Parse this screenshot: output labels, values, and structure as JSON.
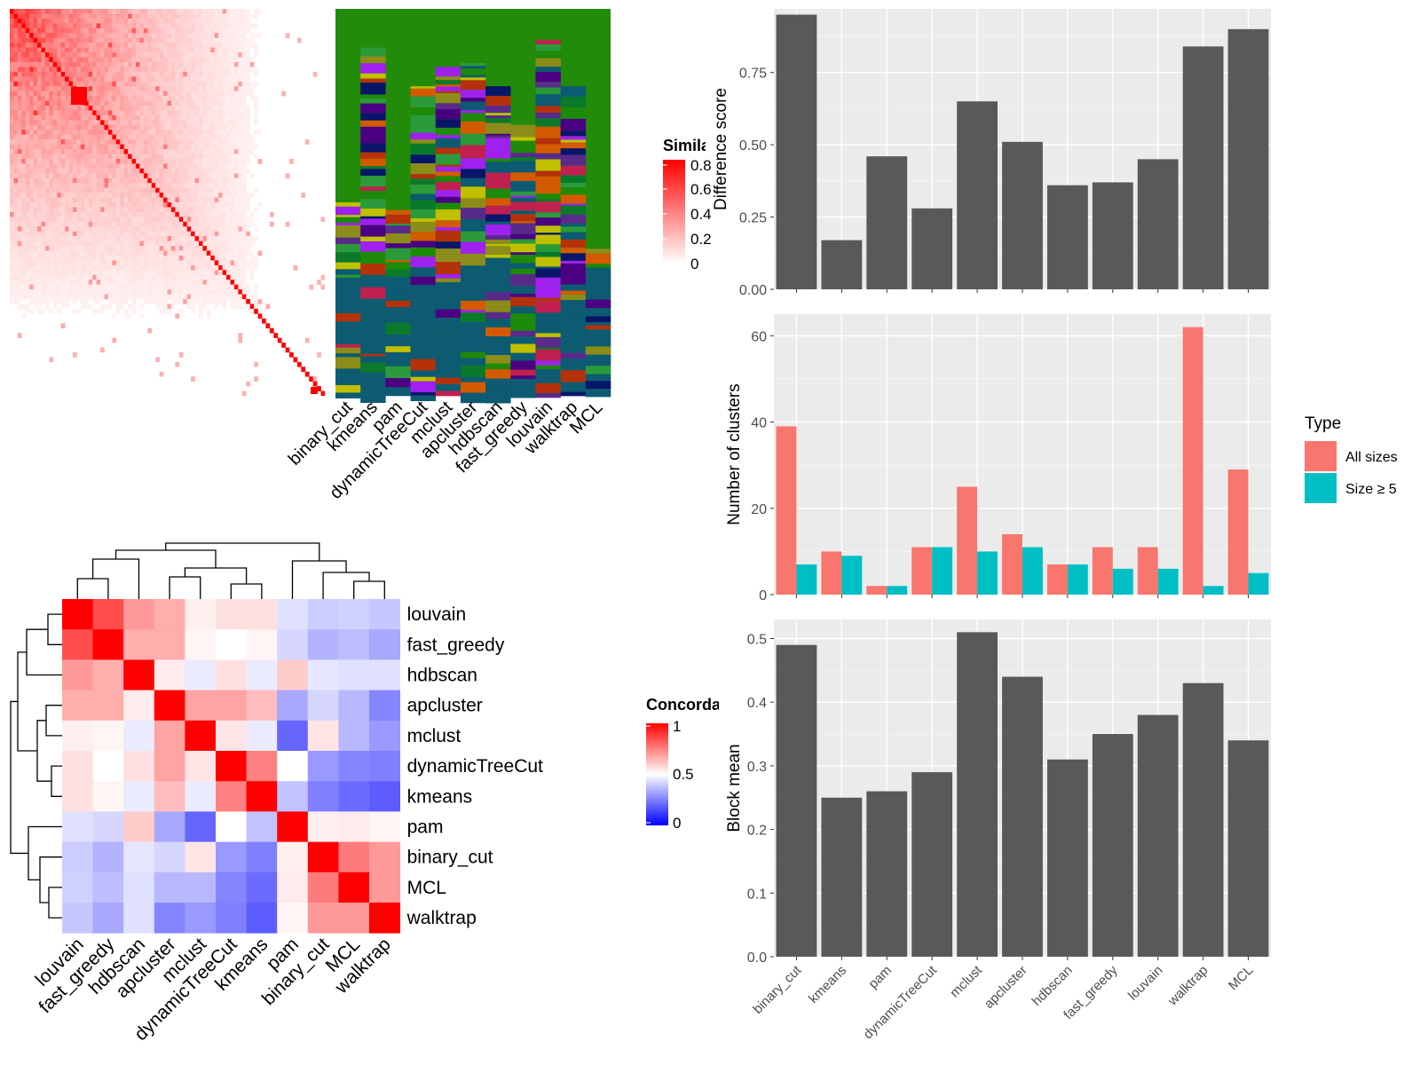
{
  "methods_sim": [
    "binary_cut",
    "kmeans",
    "pam",
    "dynamicTreeCut",
    "mclust",
    "apcluster",
    "hdbscan",
    "fast_greedy",
    "louvain",
    "walktrap",
    "MCL"
  ],
  "sim_legend": {
    "title": "Similarity",
    "ticks": [
      "0.8",
      "0.6",
      "0.4",
      "0.2",
      "0"
    ],
    "colors": [
      "#ffffff",
      "#ff0000"
    ]
  },
  "concord_legend": {
    "title": "Concordance",
    "ticks": [
      "1",
      "0.5",
      "0"
    ],
    "colors": [
      "#0000ff",
      "#ffffff",
      "#ff0000"
    ]
  },
  "concordance": {
    "order": [
      "louvain",
      "fast_greedy",
      "hdbscan",
      "apcluster",
      "mclust",
      "dynamicTreeCut",
      "kmeans",
      "pam",
      "binary_cut",
      "MCL",
      "walktrap"
    ],
    "matrix": [
      [
        1.0,
        0.85,
        0.7,
        0.66,
        0.53,
        0.56,
        0.56,
        0.44,
        0.4,
        0.41,
        0.39
      ],
      [
        0.85,
        1.0,
        0.66,
        0.66,
        0.52,
        0.5,
        0.52,
        0.42,
        0.35,
        0.37,
        0.33
      ],
      [
        0.7,
        0.66,
        1.0,
        0.54,
        0.46,
        0.56,
        0.46,
        0.6,
        0.45,
        0.44,
        0.44
      ],
      [
        0.66,
        0.66,
        0.54,
        1.0,
        0.68,
        0.68,
        0.63,
        0.33,
        0.42,
        0.36,
        0.26
      ],
      [
        0.53,
        0.52,
        0.46,
        0.68,
        1.0,
        0.55,
        0.46,
        0.2,
        0.55,
        0.36,
        0.3
      ],
      [
        0.56,
        0.5,
        0.56,
        0.68,
        0.55,
        1.0,
        0.75,
        0.5,
        0.3,
        0.26,
        0.25
      ],
      [
        0.56,
        0.52,
        0.46,
        0.63,
        0.46,
        0.75,
        1.0,
        0.38,
        0.25,
        0.21,
        0.18
      ],
      [
        0.44,
        0.42,
        0.6,
        0.33,
        0.2,
        0.5,
        0.38,
        1.0,
        0.53,
        0.54,
        0.52
      ],
      [
        0.4,
        0.35,
        0.45,
        0.42,
        0.55,
        0.3,
        0.25,
        0.53,
        1.0,
        0.76,
        0.7
      ],
      [
        0.41,
        0.37,
        0.44,
        0.36,
        0.36,
        0.26,
        0.21,
        0.54,
        0.76,
        1.0,
        0.7
      ],
      [
        0.39,
        0.33,
        0.44,
        0.26,
        0.3,
        0.25,
        0.18,
        0.52,
        0.7,
        0.7,
        1.0
      ]
    ]
  },
  "bar_methods": [
    "binary_cut",
    "kmeans",
    "pam",
    "dynamicTreeCut",
    "mclust",
    "apcluster",
    "hdbscan",
    "fast_greedy",
    "louvain",
    "walktrap",
    "MCL"
  ],
  "bar_color": "#595959",
  "difference": {
    "ylabel": "Difference score",
    "ticks": [
      "0.00",
      "0.25",
      "0.50",
      "0.75"
    ],
    "ylim": [
      0,
      0.97
    ],
    "values": [
      0.95,
      0.17,
      0.46,
      0.28,
      0.65,
      0.51,
      0.36,
      0.37,
      0.45,
      0.84,
      0.9
    ]
  },
  "nclusters": {
    "ylabel": "Number of clusters",
    "ticks": [
      "0",
      "20",
      "40",
      "60"
    ],
    "ylim": [
      0,
      65
    ],
    "all": [
      39,
      10,
      2,
      11,
      25,
      14,
      7,
      11,
      11,
      62,
      29
    ],
    "size5": [
      7,
      9,
      2,
      11,
      10,
      11,
      7,
      6,
      6,
      2,
      5
    ]
  },
  "blockmean": {
    "ylabel": "Block mean",
    "ticks": [
      "0.0",
      "0.1",
      "0.2",
      "0.3",
      "0.4",
      "0.5"
    ],
    "ylim": [
      0,
      0.53
    ],
    "values": [
      0.49,
      0.25,
      0.26,
      0.29,
      0.51,
      0.44,
      0.31,
      0.35,
      0.38,
      0.43,
      0.34
    ]
  },
  "type_legend": {
    "title": "Type",
    "items": [
      {
        "label": "All sizes",
        "color": "#F8766D"
      },
      {
        "label": "Size ≥ 5",
        "color": "#00BFC4"
      }
    ]
  },
  "chart_data": [
    {
      "type": "bar",
      "title": "",
      "ylabel": "Difference score",
      "categories": [
        "binary_cut",
        "kmeans",
        "pam",
        "dynamicTreeCut",
        "mclust",
        "apcluster",
        "hdbscan",
        "fast_greedy",
        "louvain",
        "walktrap",
        "MCL"
      ],
      "values": [
        0.95,
        0.17,
        0.46,
        0.28,
        0.65,
        0.51,
        0.36,
        0.37,
        0.45,
        0.84,
        0.9
      ],
      "ylim": [
        0,
        0.97
      ]
    },
    {
      "type": "bar",
      "title": "",
      "ylabel": "Number of clusters",
      "categories": [
        "binary_cut",
        "kmeans",
        "pam",
        "dynamicTreeCut",
        "mclust",
        "apcluster",
        "hdbscan",
        "fast_greedy",
        "louvain",
        "walktrap",
        "MCL"
      ],
      "series": [
        {
          "name": "All sizes",
          "values": [
            39,
            10,
            2,
            11,
            25,
            14,
            7,
            11,
            11,
            62,
            29
          ]
        },
        {
          "name": "Size ≥ 5",
          "values": [
            7,
            9,
            2,
            11,
            10,
            11,
            7,
            6,
            6,
            2,
            5
          ]
        }
      ],
      "ylim": [
        0,
        65
      ]
    },
    {
      "type": "bar",
      "title": "",
      "ylabel": "Block mean",
      "categories": [
        "binary_cut",
        "kmeans",
        "pam",
        "dynamicTreeCut",
        "mclust",
        "apcluster",
        "hdbscan",
        "fast_greedy",
        "louvain",
        "walktrap",
        "MCL"
      ],
      "values": [
        0.49,
        0.25,
        0.26,
        0.29,
        0.51,
        0.44,
        0.31,
        0.35,
        0.38,
        0.43,
        0.34
      ],
      "ylim": [
        0,
        0.53
      ]
    },
    {
      "type": "heatmap",
      "title": "",
      "rows": [
        "louvain",
        "fast_greedy",
        "hdbscan",
        "apcluster",
        "mclust",
        "dynamicTreeCut",
        "kmeans",
        "pam",
        "binary_cut",
        "MCL",
        "walktrap"
      ],
      "columns": [
        "louvain",
        "fast_greedy",
        "hdbscan",
        "apcluster",
        "mclust",
        "dynamicTreeCut",
        "kmeans",
        "pam",
        "binary_cut",
        "MCL",
        "walktrap"
      ],
      "legend": "Concordance"
    }
  ]
}
